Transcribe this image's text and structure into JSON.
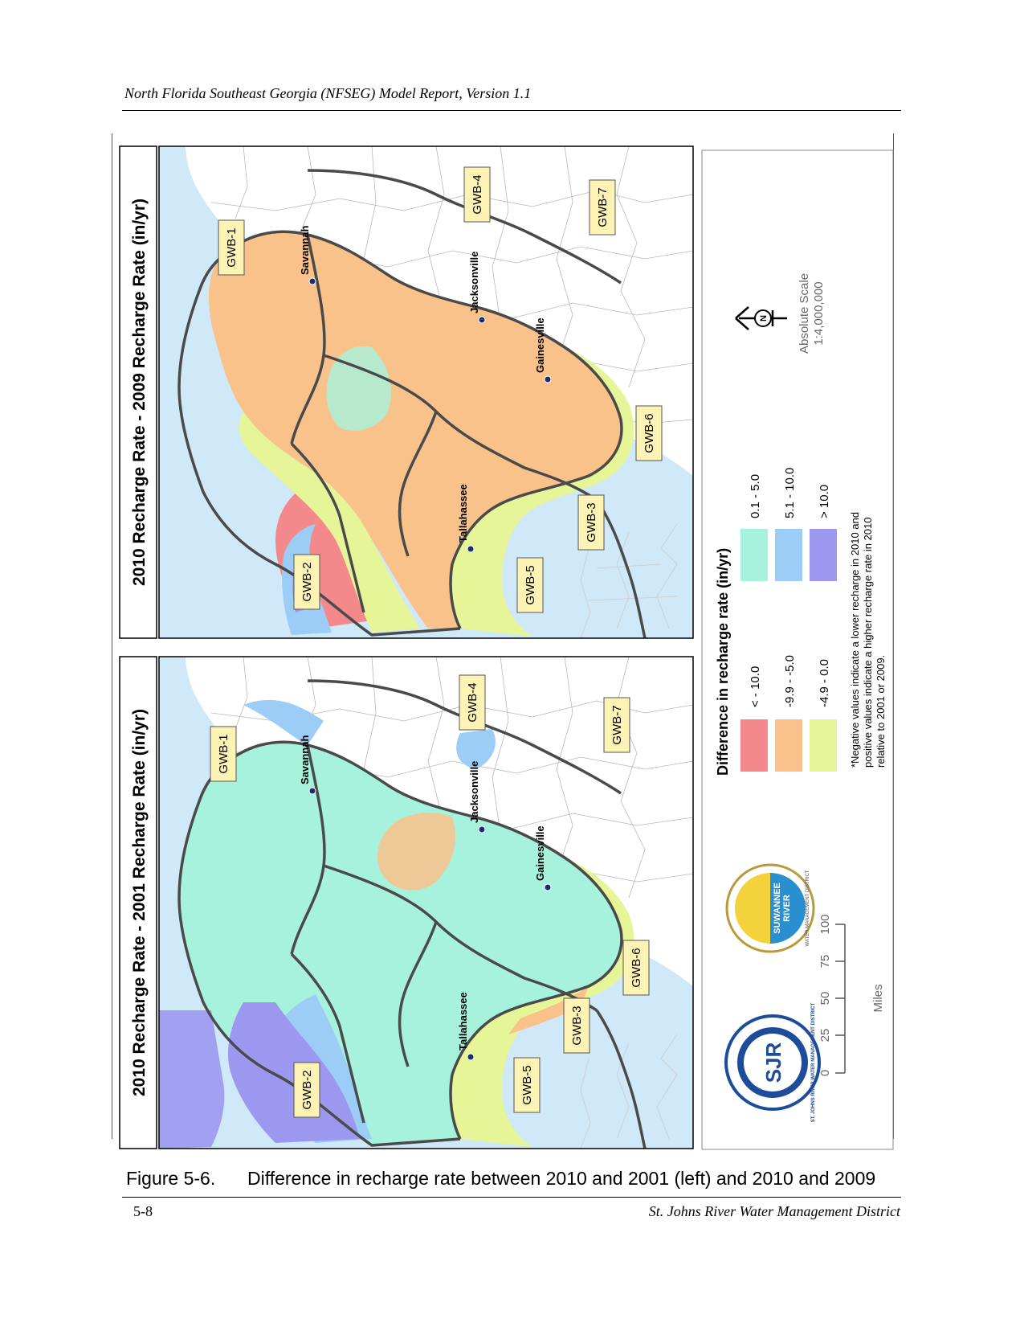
{
  "header": {
    "title": "North Florida Southeast Georgia (NFSEG) Model Report, Version 1.1"
  },
  "maps": [
    {
      "title": "2010 Recharge Rate - 2001 Recharge Rate (in/yr)",
      "cities": [
        "Savannah",
        "Jacksonville",
        "Gainesville",
        "Tallahassee"
      ],
      "zones": [
        "GWB-1",
        "GWB-2",
        "GWB-3",
        "GWB-4",
        "GWB-5",
        "GWB-6",
        "GWB-7"
      ]
    },
    {
      "title": "2010 Recharge Rate - 2009 Recharge Rate (in/yr)",
      "cities": [
        "Savannah",
        "Jacksonville",
        "Gainesville",
        "Tallahassee"
      ],
      "zones": [
        "GWB-1",
        "GWB-2",
        "GWB-3",
        "GWB-4",
        "GWB-5",
        "GWB-6",
        "GWB-7"
      ]
    }
  ],
  "legend": {
    "title": "Difference in recharge rate (in/yr)",
    "classes": [
      {
        "label": "< - 10.0",
        "color": "#f4898b"
      },
      {
        "label": "-9.9 - -5.0",
        "color": "#f9c28b"
      },
      {
        "label": "-4.9 - 0.0",
        "color": "#e6f597"
      },
      {
        "label": "0.1 - 5.0",
        "color": "#a6f2dd"
      },
      {
        "label": "5.1 - 10.0",
        "color": "#9ccdf7"
      },
      {
        "label": "> 10.0",
        "color": "#9c98f0"
      }
    ],
    "note": [
      "*Negative values indicate a lower recharge in 2010 and",
      "positive values indicate a higher recharge rate in 2010",
      "relative to 2001 or 2009."
    ]
  },
  "scale": {
    "absolute_label": "Absolute Scale",
    "absolute_value": "1:4,000,000",
    "ticks": [
      "0",
      "25",
      "50",
      "75",
      "100"
    ],
    "unit": "Miles"
  },
  "logos": {
    "sjr": {
      "text": "SJR",
      "ring": "ST. JOHNS RIVER WATER MANAGEMENT DISTRICT"
    },
    "srwmd": {
      "text1": "SUWANNEE",
      "text2": "RIVER",
      "ring": "WATER MANAGEMENT DISTRICT"
    }
  },
  "north_letter": "N",
  "caption": {
    "number": "Figure 5-6.",
    "text": "Difference in recharge rate between 2010 and 2001 (left) and 2010 and 2009"
  },
  "footer": {
    "page": "5-8",
    "org": "St. Johns River Water Management District"
  }
}
